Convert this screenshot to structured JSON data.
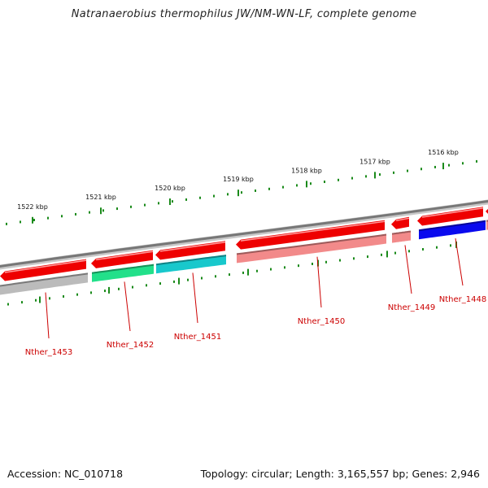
{
  "title": "Natranaerobius thermophilus JW/NM-WN-LF, complete genome",
  "footer": {
    "accession": "Accession: NC_010718",
    "summary": "Topology: circular; Length: 3,165,557 bp; Genes: 2,946"
  },
  "scale": {
    "labels": [
      "1522 kbp",
      "1521 kbp",
      "1520 kbp",
      "1519 kbp",
      "1518 kbp",
      "1517 kbp",
      "1516 kbp"
    ]
  },
  "genes": [
    "Nther_1453",
    "Nther_1452",
    "Nther_1451",
    "Nther_1450",
    "Nther_1449",
    "Nther_1448"
  ],
  "colors": {
    "cds": "#ee0000",
    "tick": "#1a8a1a",
    "backbone": "#777777",
    "gene_label": "#cc0000",
    "cog_gray": "#bbbbbb",
    "cog_green": "#22e08a",
    "cog_cyan": "#18c8cc",
    "cog_pink": "#f28a8a",
    "cog_blue": "#0a0aee"
  }
}
